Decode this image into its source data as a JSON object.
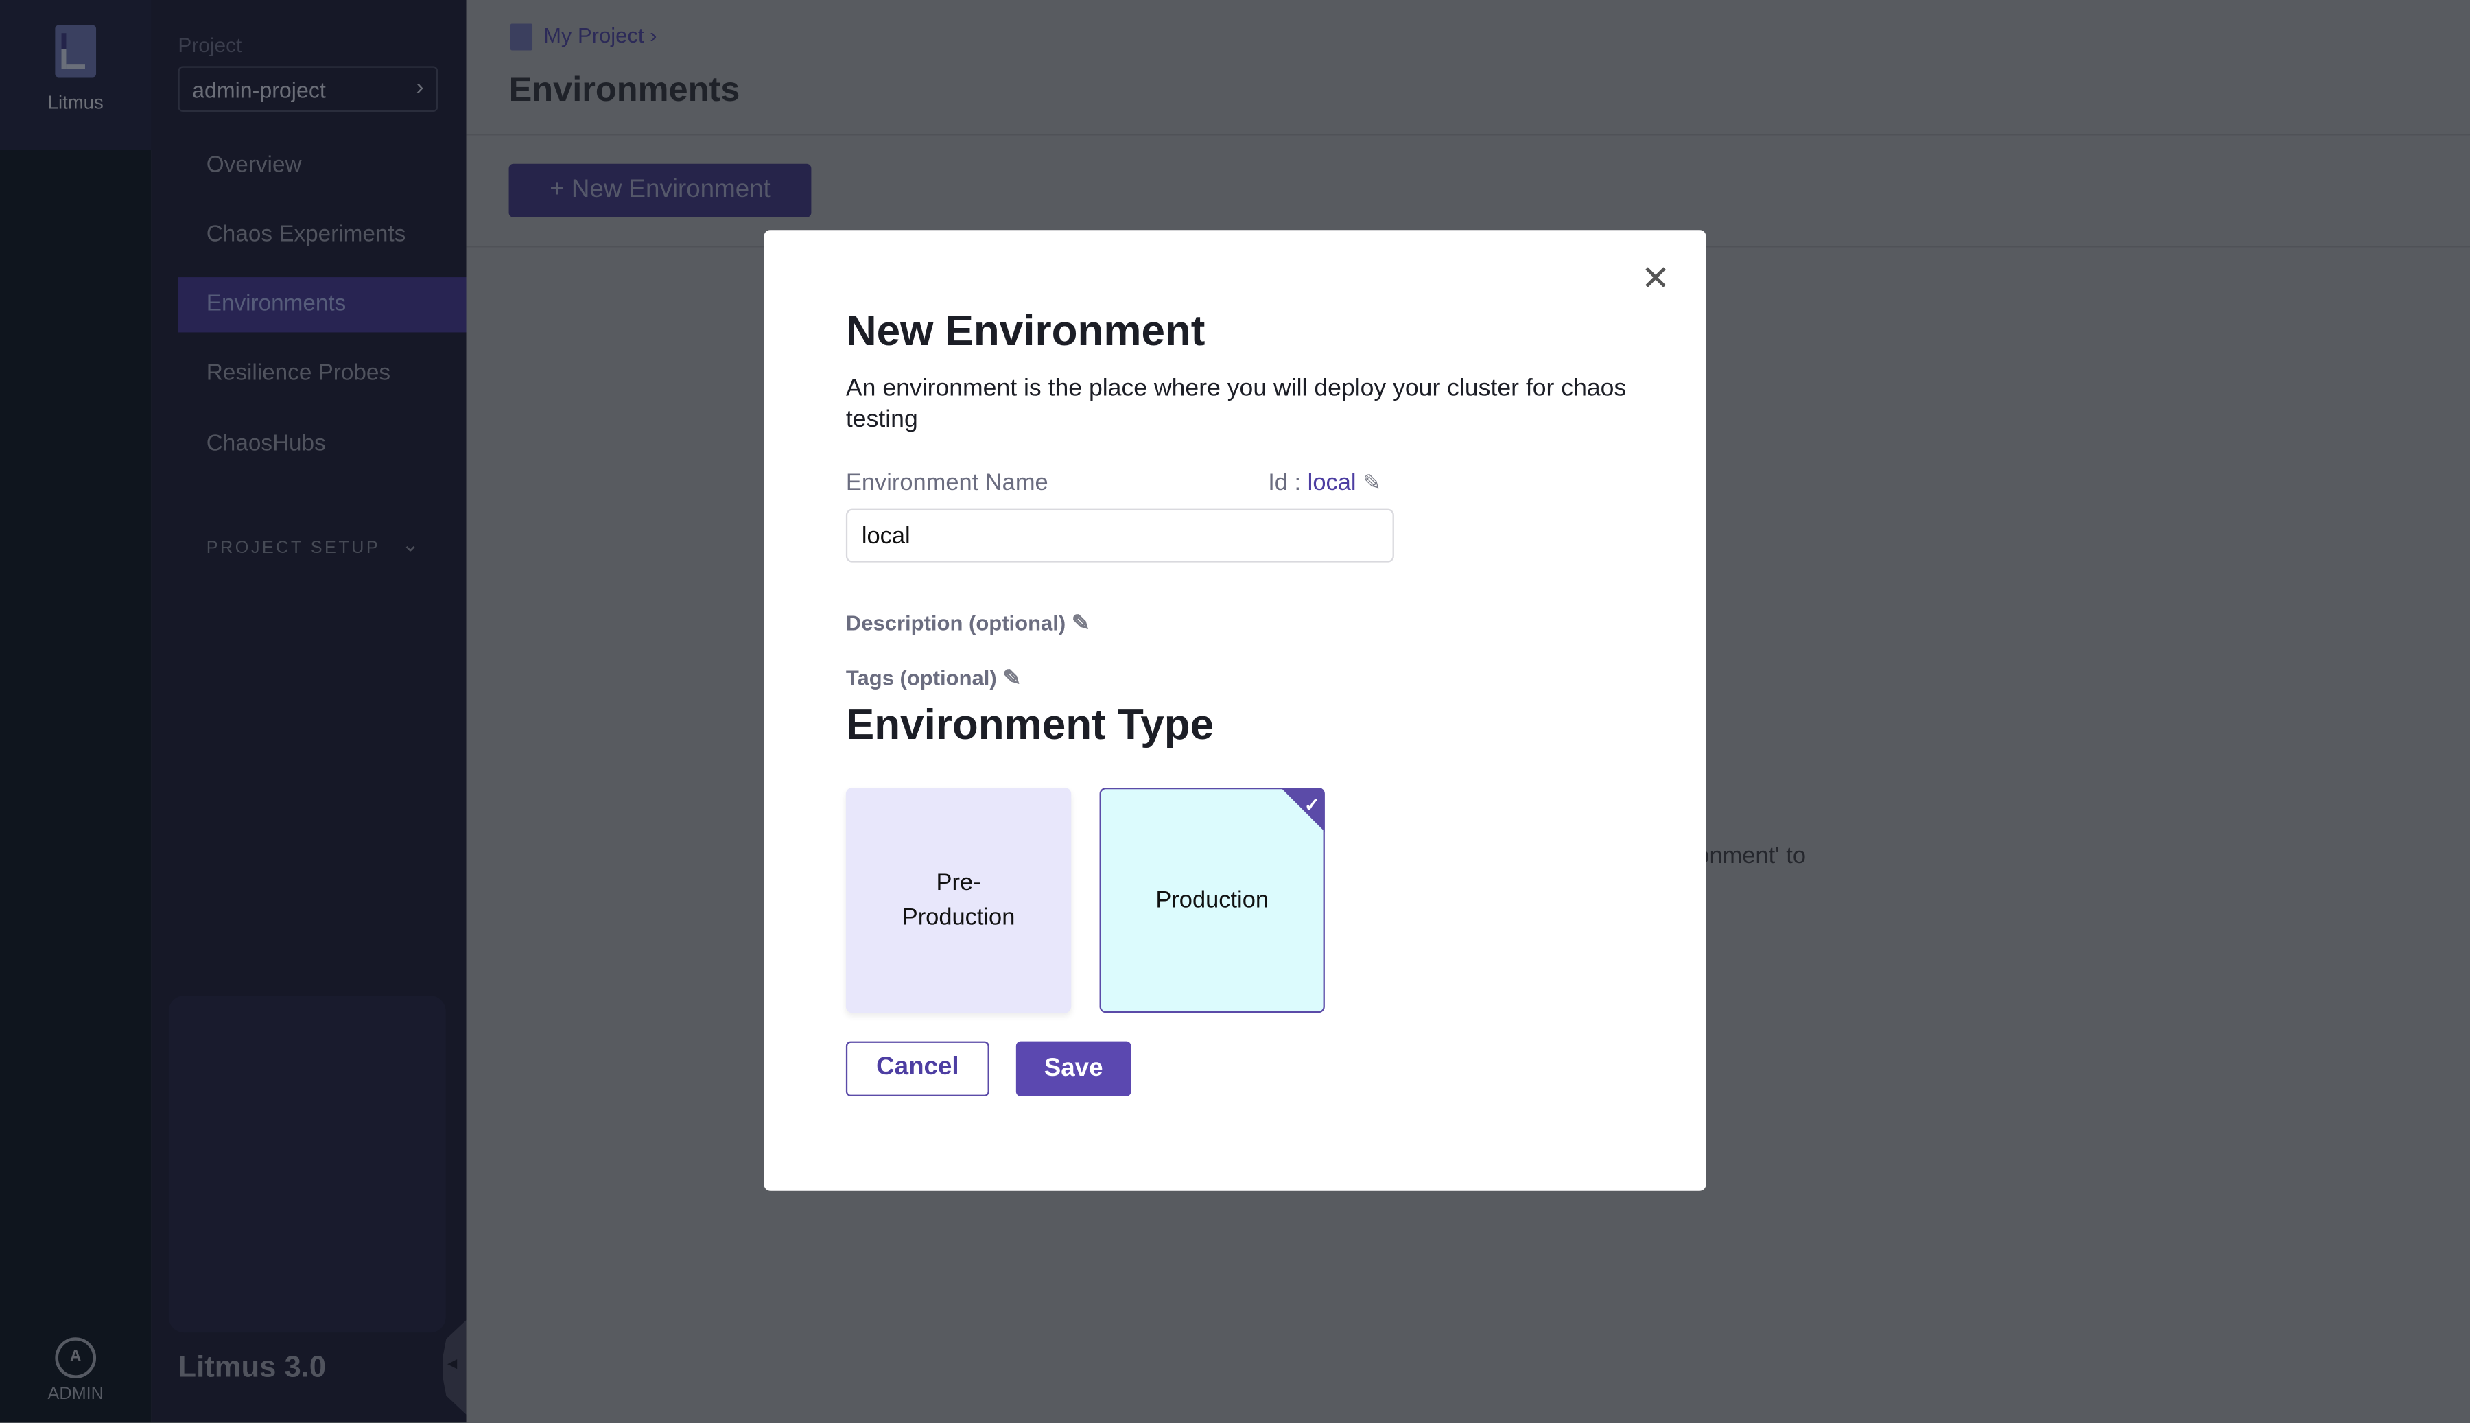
{
  "rail": {
    "app_name": "Litmus",
    "user_initial": "A",
    "user_label": "ADMIN"
  },
  "sidebar": {
    "project_label": "Project",
    "project_name": "admin-project",
    "items": [
      {
        "label": "Overview"
      },
      {
        "label": "Chaos Experiments"
      },
      {
        "label": "Environments",
        "active": true
      },
      {
        "label": "Resilience Probes"
      },
      {
        "label": "ChaosHubs"
      }
    ],
    "section": "PROJECT SETUP",
    "version": "Litmus 3.0"
  },
  "header": {
    "breadcrumb": "My Project",
    "title": "Environments"
  },
  "toolbar": {
    "new_button": "+ New Environment"
  },
  "background_text": "vironment' to",
  "modal": {
    "title": "New Environment",
    "description": "An environment is the place where you will deploy your cluster for chaos testing",
    "name_label": "Environment Name",
    "id_label": "Id :",
    "id_value": "local",
    "name_value": "local",
    "description_label": "Description (optional)",
    "tags_label": "Tags (optional)",
    "type_title": "Environment Type",
    "types": [
      {
        "label": "Pre-Production",
        "selected": false
      },
      {
        "label": "Production",
        "selected": true
      }
    ],
    "cancel": "Cancel",
    "save": "Save"
  },
  "colors": {
    "accent": "#5b48b0",
    "pre_production_card": "#e8e7fb",
    "production_card": "#dcfbfd"
  }
}
